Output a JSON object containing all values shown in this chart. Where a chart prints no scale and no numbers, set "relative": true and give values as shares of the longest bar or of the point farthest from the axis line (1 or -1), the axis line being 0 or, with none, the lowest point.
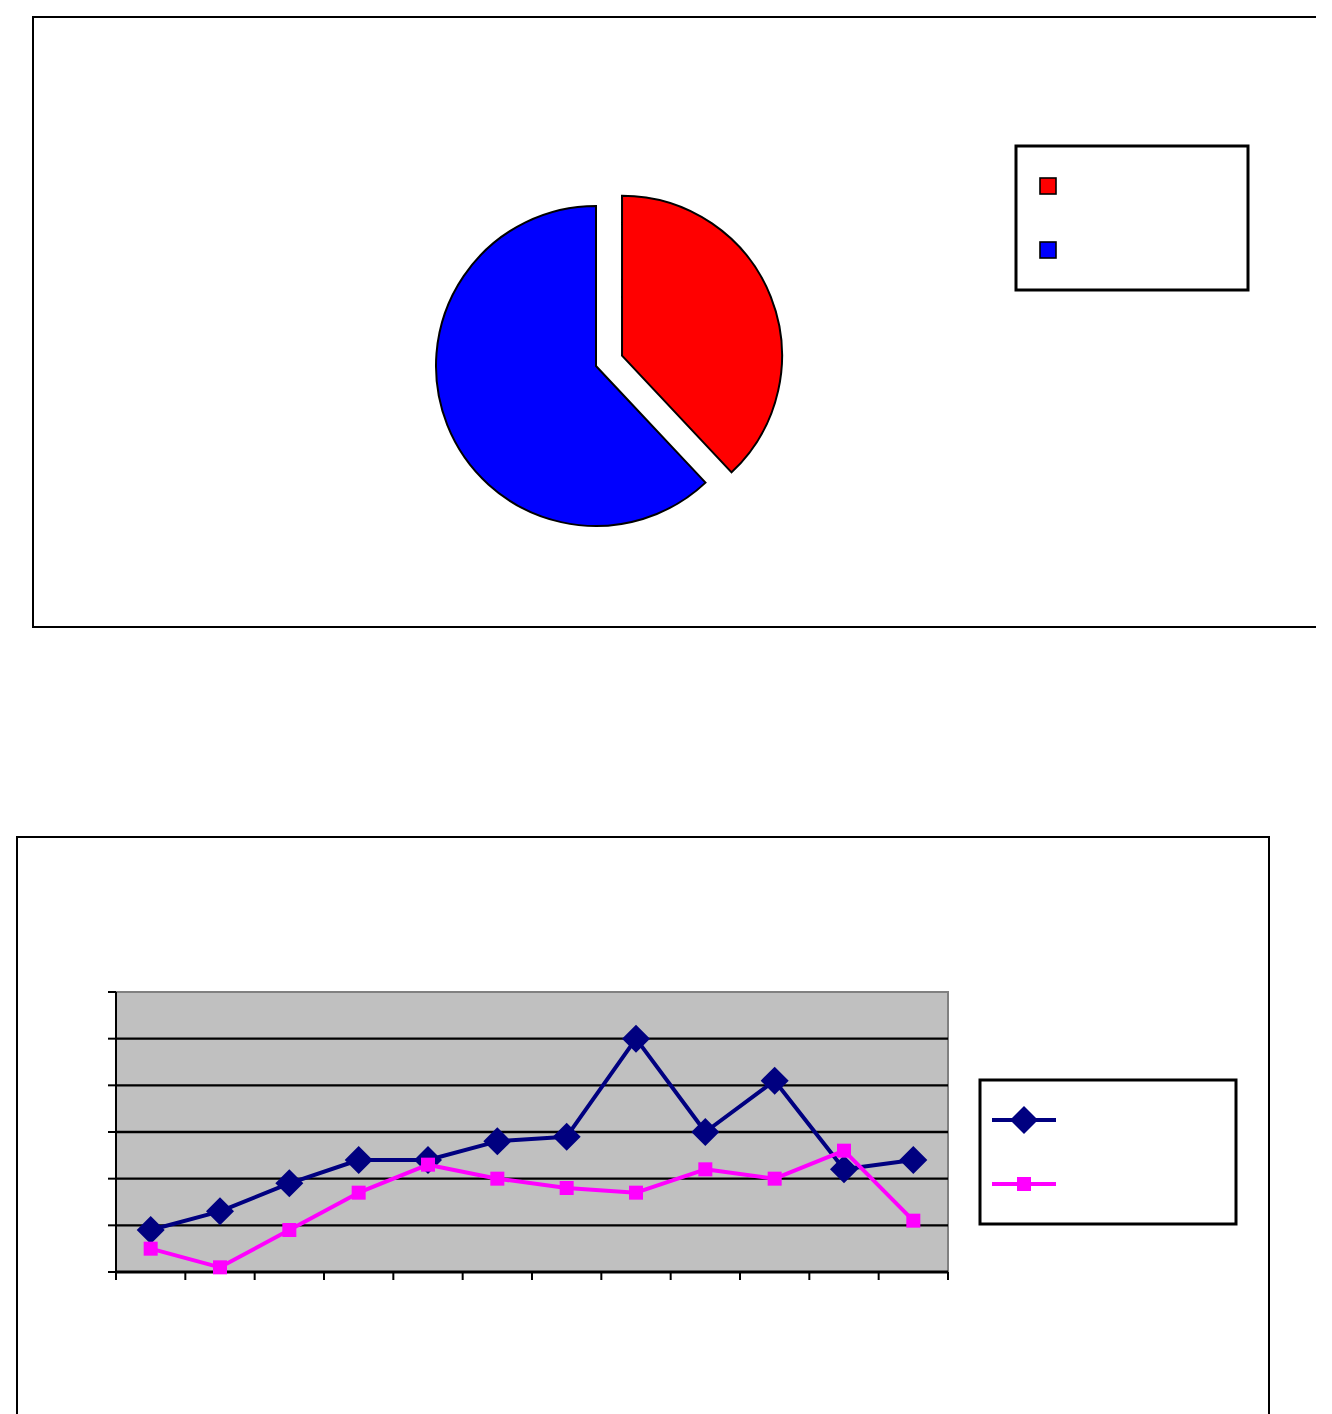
{
  "chart_data": [
    {
      "type": "pie",
      "categories": [
        null,
        null
      ],
      "values": [
        38,
        62
      ],
      "colors": [
        "#ff0000",
        "#0000ff"
      ]
    },
    {
      "type": "line",
      "relative": true,
      "categories": [
        null,
        null,
        null,
        null,
        null,
        null,
        null,
        null,
        null,
        null,
        null,
        null
      ],
      "grid": true,
      "series": [
        {
          "color": "#000080",
          "marker": "diamond",
          "values": [
            0.18,
            0.26,
            0.38,
            0.48,
            0.48,
            0.56,
            0.58,
            1,
            0.6,
            0.82,
            0.44,
            0.48
          ]
        },
        {
          "color": "#ff00ff",
          "marker": "square",
          "values": [
            0.1,
            0.02,
            0.18,
            0.34,
            0.46,
            0.4,
            0.36,
            0.34,
            0.44,
            0.4,
            0.52,
            0.22
          ]
        }
      ]
    }
  ]
}
